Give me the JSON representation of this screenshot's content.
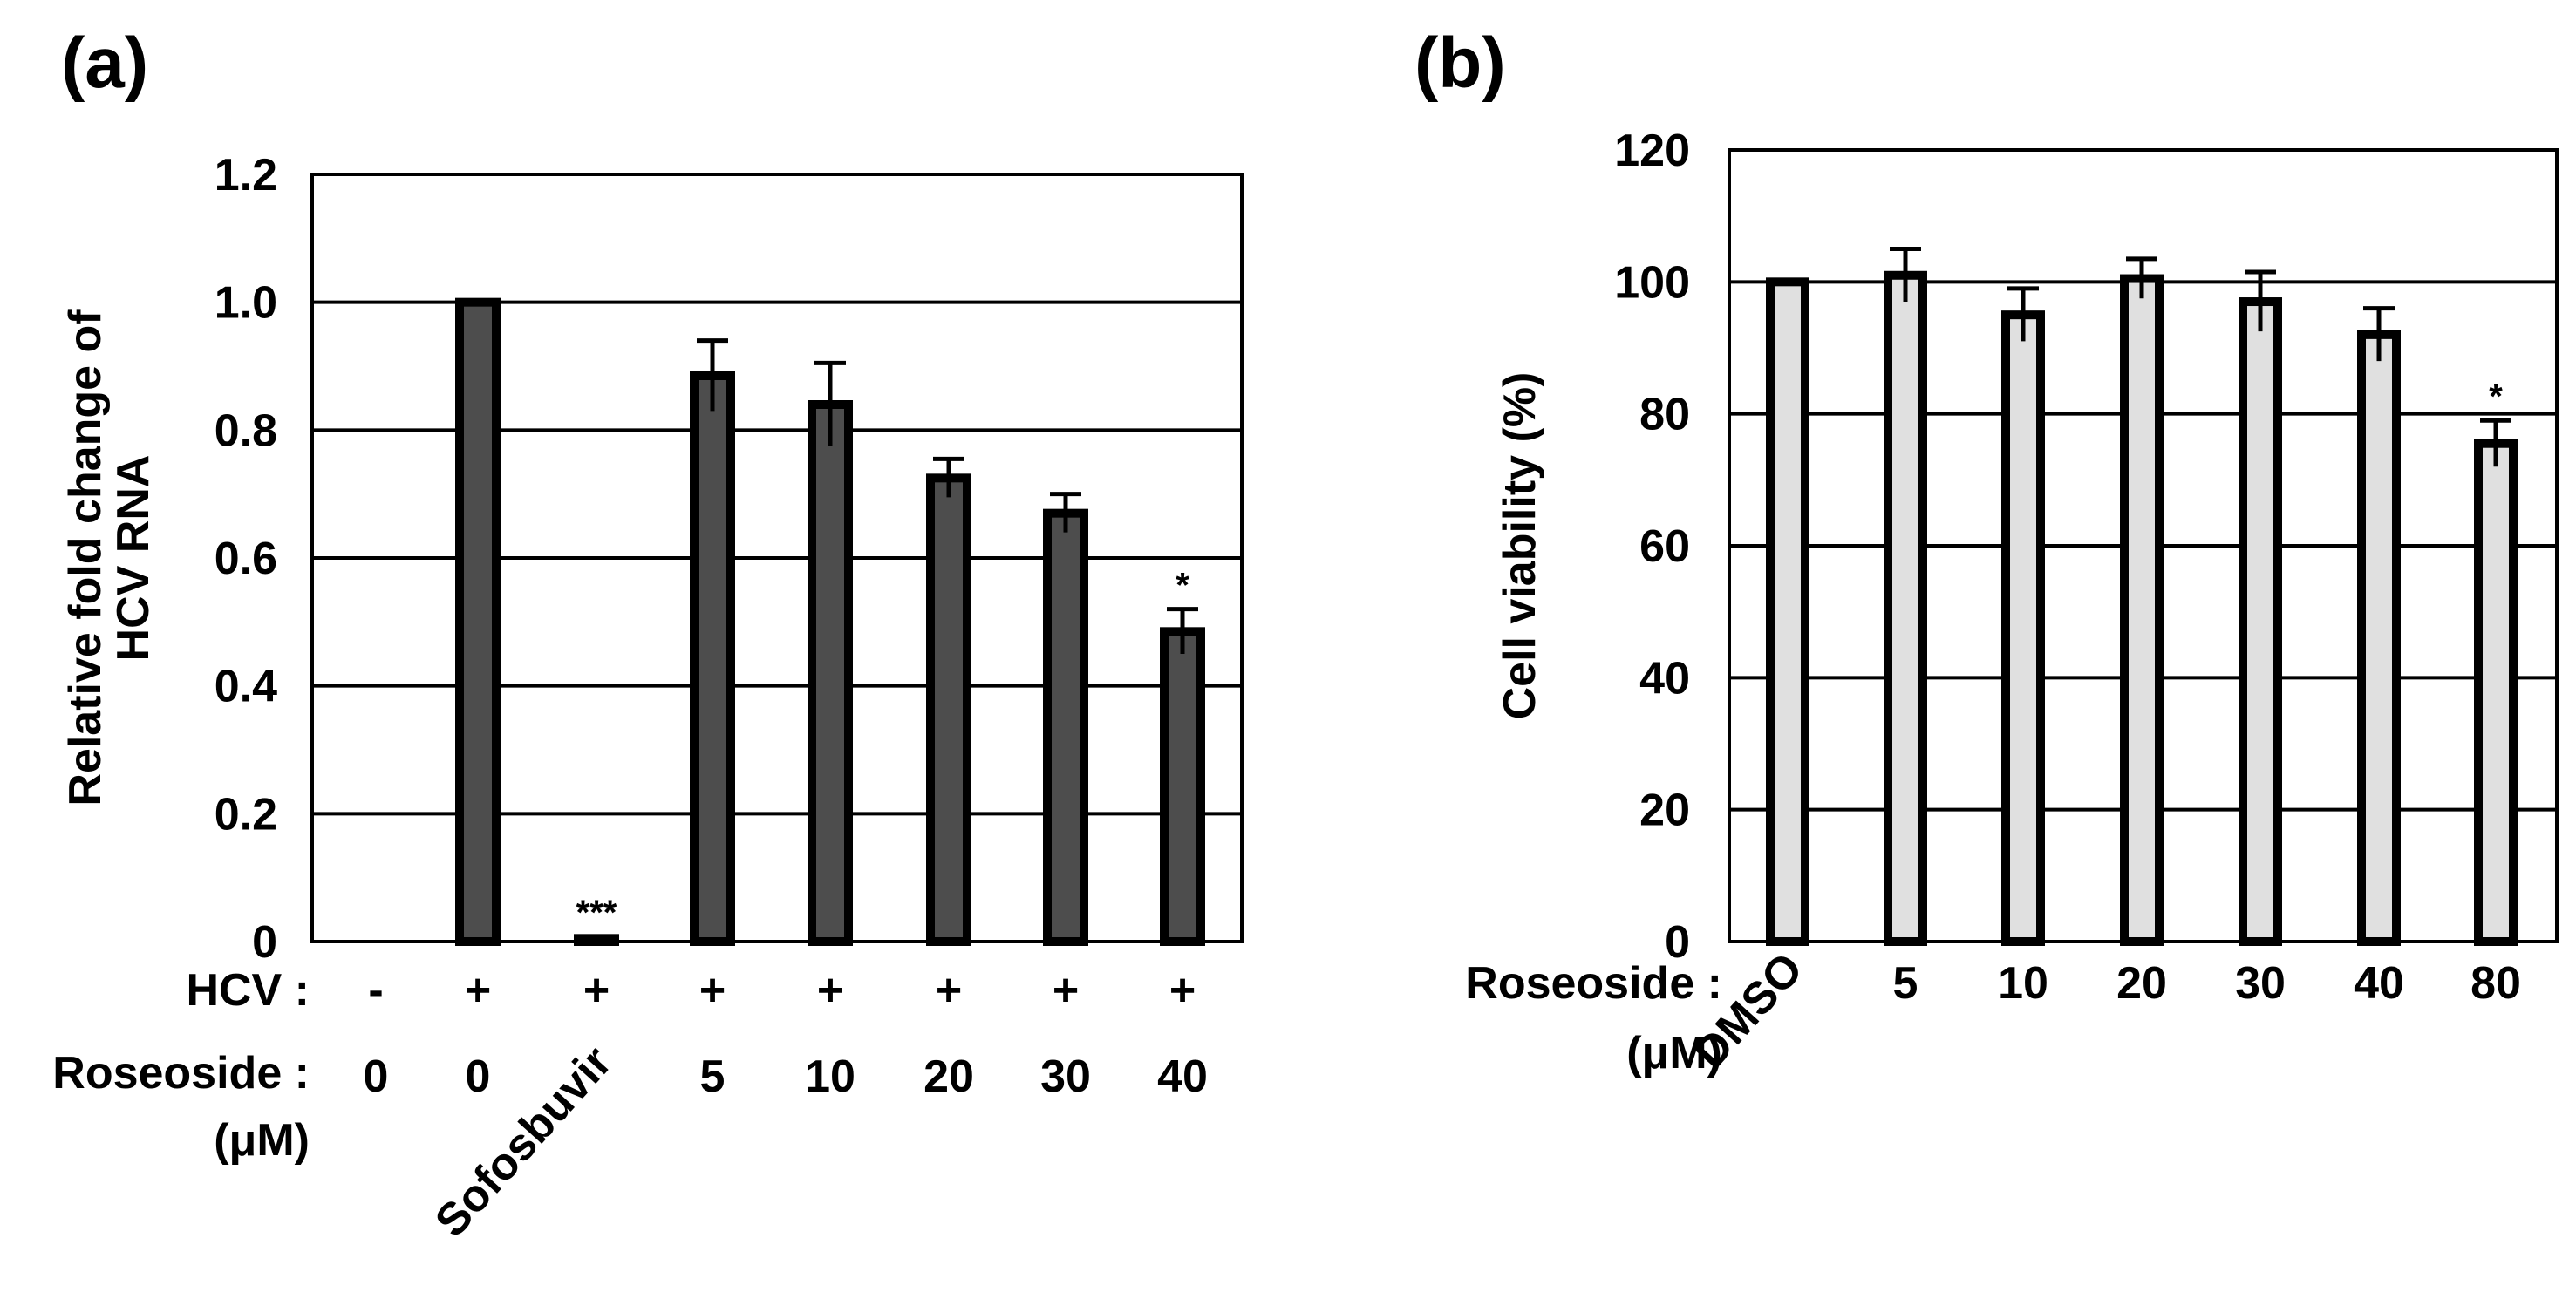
{
  "colors": {
    "bar_a": "#4d4d4d",
    "bar_b": "#e0e0e0",
    "grid": "#000000",
    "text": "#000000"
  },
  "chart_data": [
    {
      "panel_label": "(a)",
      "type": "bar",
      "ylabel": [
        "Relative fold change of",
        "HCV RNA"
      ],
      "ylim": [
        0,
        1.2
      ],
      "yticks": [
        "0",
        "0.2",
        "0.4",
        "0.6",
        "0.8",
        "1.0",
        "1.2"
      ],
      "ytick_values": [
        0,
        0.2,
        0.4,
        0.6,
        0.8,
        1.0,
        1.2
      ],
      "grid": true,
      "row_labels": [
        "HCV :",
        "Roseoside :",
        "(μM)"
      ],
      "hcv_row": [
        "-",
        "+",
        "+",
        "+",
        "+",
        "+",
        "+",
        "+"
      ],
      "categories": [
        "0",
        "0",
        "Sofosbuvir",
        "5",
        "10",
        "20",
        "30",
        "40"
      ],
      "values": [
        0,
        1.0,
        0.005,
        0.885,
        0.84,
        0.725,
        0.67,
        0.485
      ],
      "errors": [
        0,
        0,
        0,
        0.055,
        0.065,
        0.03,
        0.03,
        0.035
      ],
      "annotations": [
        "",
        "",
        "***",
        "",
        "",
        "",
        "",
        "*"
      ]
    },
    {
      "panel_label": "(b)",
      "type": "bar",
      "ylabel": [
        "Cell viability (%)"
      ],
      "ylim": [
        0,
        120
      ],
      "yticks": [
        "0",
        "20",
        "40",
        "60",
        "80",
        "100",
        "120"
      ],
      "ytick_values": [
        0,
        20,
        40,
        60,
        80,
        100,
        120
      ],
      "grid": true,
      "row_labels": [
        "Roseoside :",
        "(μM)"
      ],
      "categories": [
        "DMSO",
        "5",
        "10",
        "20",
        "30",
        "40",
        "80"
      ],
      "values": [
        100,
        101,
        95,
        100.5,
        97,
        92,
        75.5
      ],
      "errors": [
        0,
        4,
        4,
        3,
        4.5,
        4,
        3.5
      ],
      "annotations": [
        "",
        "",
        "",
        "",
        "",
        "",
        "*"
      ]
    }
  ]
}
